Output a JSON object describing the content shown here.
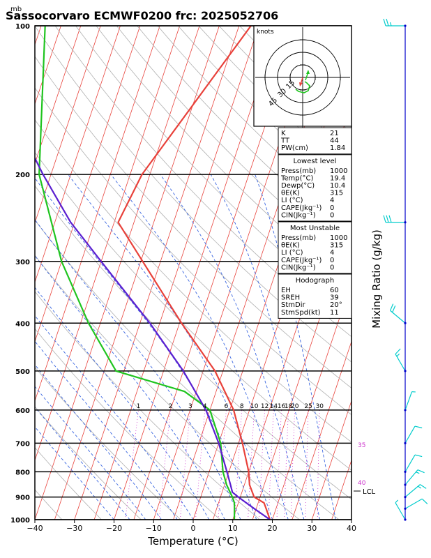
{
  "title": "Sassocorvaro ECMWF0200 frc: 2025052706",
  "pressure_unit": "mb",
  "xlabel": "Temperature (°C)",
  "right_label": "Mixing Ratio (g/kg)",
  "hodograph": {
    "unit_label": "knots",
    "ring_labels": [
      "15",
      "30",
      "45"
    ]
  },
  "mixing_ratio_labels": [
    "1",
    "2",
    "3",
    "4",
    "6",
    "8",
    "10",
    "12",
    "14",
    "16",
    "18",
    "20",
    "25",
    "30"
  ],
  "theta_labels": [
    "35",
    "40"
  ],
  "lcl_label": "LCL",
  "indices": {
    "rows": [
      {
        "label": "K",
        "value": "21"
      },
      {
        "label": "TT",
        "value": "44"
      },
      {
        "label": "PW(cm)",
        "value": "1.84"
      }
    ]
  },
  "lowest_level": {
    "heading": "Lowest level",
    "rows": [
      {
        "label": "Press(mb)",
        "value": "1000"
      },
      {
        "label": "Temp(°C)",
        "value": "19.4"
      },
      {
        "label": "Dewp(°C)",
        "value": "10.4"
      },
      {
        "label": "θE(K)",
        "value": "315"
      },
      {
        "label": "LI (°C)",
        "value": "4"
      },
      {
        "label": "CAPE(Jkg⁻¹)",
        "value": "0"
      },
      {
        "label": "CIN(Jkg⁻¹)",
        "value": "0"
      }
    ]
  },
  "most_unstable": {
    "heading": "Most Unstable",
    "rows": [
      {
        "label": "Press(mb)",
        "value": "1000"
      },
      {
        "label": "θE(K)",
        "value": "315"
      },
      {
        "label": "LI (°C)",
        "value": "4"
      },
      {
        "label": "CAPE(Jkg⁻¹)",
        "value": "0"
      },
      {
        "label": "CIN(Jkg⁻¹)",
        "value": "0"
      }
    ]
  },
  "hodograph_box": {
    "heading": "Hodograph",
    "rows": [
      {
        "label": "EH",
        "value": "60"
      },
      {
        "label": "SREH",
        "value": "39"
      },
      {
        "label": "StmDir",
        "value": "20°"
      },
      {
        "label": "StmSpd(kt)",
        "value": "11"
      }
    ]
  },
  "chart_data": {
    "type": "line",
    "title": "Sassocorvaro ECMWF0200 frc: 2025052706",
    "xlabel": "Temperature (°C)",
    "ylabel": "mb",
    "xlim": [
      -40,
      40
    ],
    "ylim": [
      1000,
      100
    ],
    "y_scale": "log",
    "x_ticks": [
      -40,
      -30,
      -20,
      -10,
      0,
      10,
      20,
      30,
      40
    ],
    "y_ticks": [
      1000,
      900,
      800,
      700,
      600,
      500,
      400,
      300,
      200,
      100
    ],
    "colors": {
      "temperature": "#e8413a",
      "dewpoint": "#1fc41f",
      "parcel": "#5a1fd0",
      "isotherm": "#e8413a",
      "dry_adiabat": "#b0b0b0",
      "moist_adiabat": "#3a66e0",
      "mixing_ratio": "#cc33cc",
      "wind": "#00cccc"
    },
    "series": [
      {
        "key": "temperature",
        "pressure": [
          1000,
          950,
          925,
          900,
          850,
          800,
          700,
          600,
          500,
          400,
          300,
          250,
          200,
          100
        ],
        "values": [
          19.4,
          17.5,
          16.5,
          13.5,
          11.3,
          10.0,
          6.0,
          1.0,
          -7.0,
          -19.5,
          -34.5,
          -44.0,
          -42.0,
          -27.0
        ]
      },
      {
        "key": "dewpoint",
        "pressure": [
          1000,
          950,
          925,
          900,
          850,
          800,
          700,
          600,
          550,
          500,
          400,
          300,
          200,
          100
        ],
        "values": [
          10.4,
          9.5,
          9.0,
          8.0,
          5.5,
          3.5,
          0.5,
          -5.0,
          -13.0,
          -32.0,
          -43.0,
          -55.0,
          -68.0,
          -79.0
        ]
      },
      {
        "key": "parcel",
        "pressure": [
          1000,
          950,
          900,
          880,
          850,
          800,
          700,
          600,
          500,
          400,
          300,
          250,
          200,
          150,
          115
        ],
        "values": [
          19.4,
          14.5,
          9.5,
          7.6,
          6.5,
          4.5,
          0.0,
          -6.0,
          -15.0,
          -27.5,
          -45.0,
          -56.0,
          -67.0,
          -80.0,
          -90.0
        ]
      }
    ],
    "winds": [
      {
        "pressure": 1000,
        "speed_kt": 5,
        "dir": 330
      },
      {
        "pressure": 950,
        "speed_kt": 10,
        "dir": 60
      },
      {
        "pressure": 900,
        "speed_kt": 15,
        "dir": 50
      },
      {
        "pressure": 850,
        "speed_kt": 15,
        "dir": 40
      },
      {
        "pressure": 800,
        "speed_kt": 10,
        "dir": 30
      },
      {
        "pressure": 700,
        "speed_kt": 10,
        "dir": 30
      },
      {
        "pressure": 600,
        "speed_kt": 5,
        "dir": 20
      },
      {
        "pressure": 500,
        "speed_kt": 15,
        "dir": 330
      },
      {
        "pressure": 400,
        "speed_kt": 20,
        "dir": 310
      },
      {
        "pressure": 250,
        "speed_kt": 30,
        "dir": 270
      },
      {
        "pressure": 100,
        "speed_kt": 25,
        "dir": 270
      }
    ]
  }
}
